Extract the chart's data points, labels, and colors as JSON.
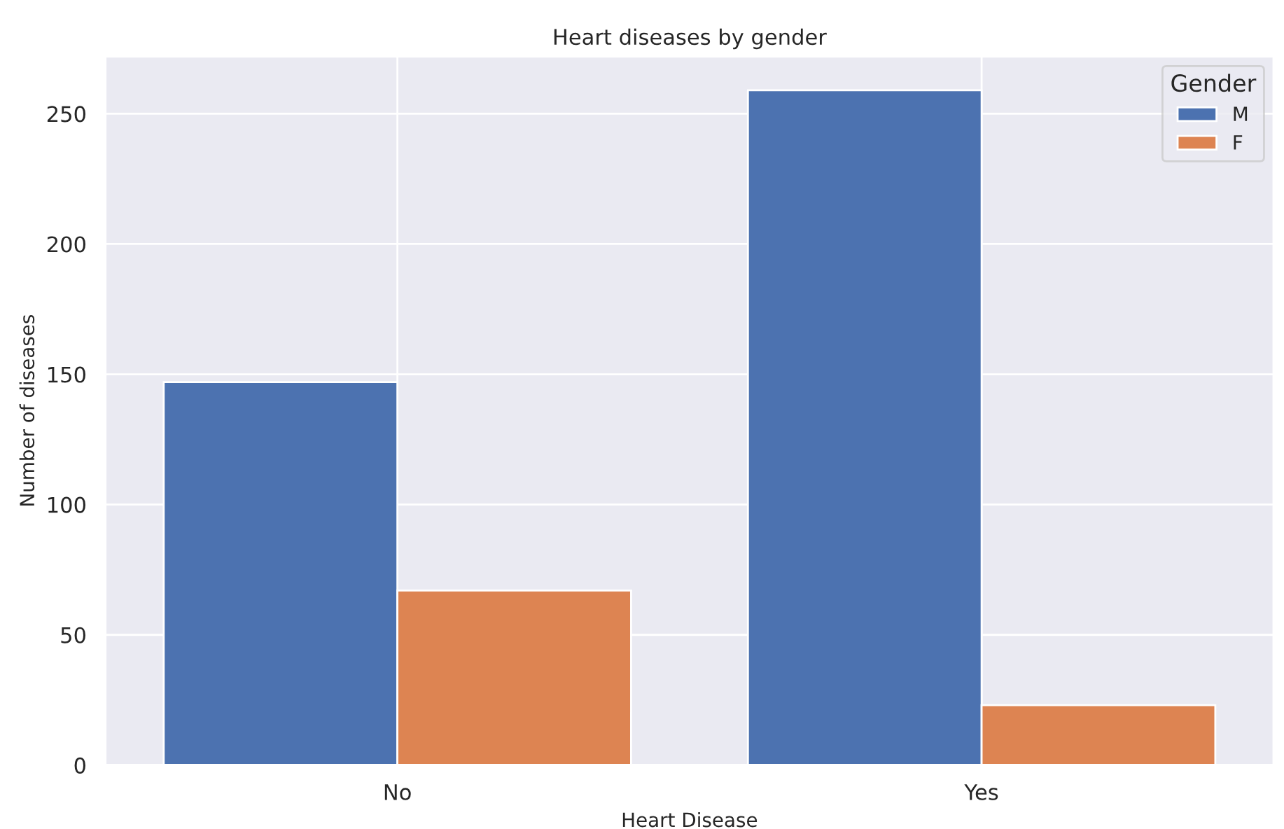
{
  "chart_data": {
    "type": "bar",
    "title": "Heart diseases by gender",
    "xlabel": "Heart Disease",
    "ylabel": "Number of diseases",
    "categories": [
      "No",
      "Yes"
    ],
    "series": [
      {
        "name": "M",
        "color": "#4c72b0",
        "values": [
          147,
          259
        ]
      },
      {
        "name": "F",
        "color": "#dd8452",
        "values": [
          67,
          23
        ]
      }
    ],
    "legend_title": "Gender",
    "legend": "top right",
    "ylim": [
      0,
      272
    ],
    "yticks": [
      0,
      50,
      100,
      150,
      200,
      250
    ],
    "grid": true
  }
}
